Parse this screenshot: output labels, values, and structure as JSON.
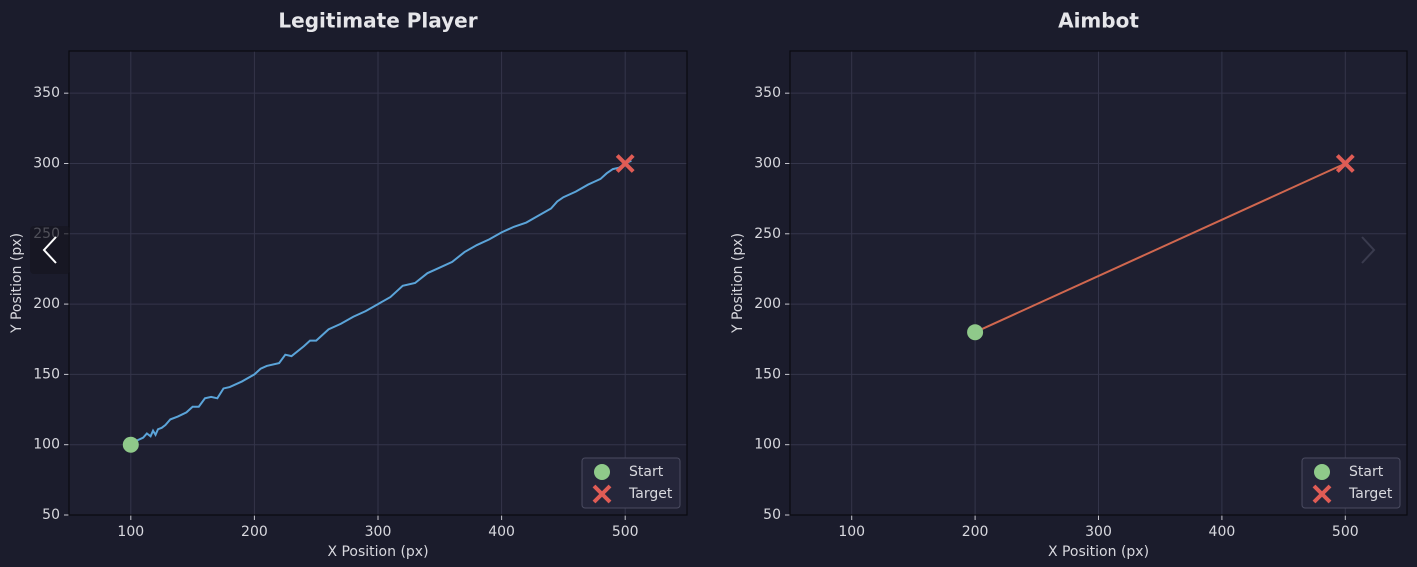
{
  "chart_data": [
    {
      "type": "line",
      "title": "Legitimate Player",
      "xlabel": "X Position (px)",
      "ylabel": "Y Position (px)",
      "xlim": [
        50,
        550
      ],
      "ylim": [
        50,
        380
      ],
      "xticks": [
        100,
        200,
        300,
        400,
        500
      ],
      "yticks": [
        50,
        100,
        150,
        200,
        250,
        300,
        350
      ],
      "grid": true,
      "legend": "lower right",
      "path": {
        "color": "#5ba4d9",
        "x": [
          100,
          105,
          110,
          113,
          116,
          118,
          120,
          122,
          125,
          128,
          132,
          138,
          145,
          150,
          155,
          160,
          165,
          170,
          175,
          180,
          190,
          200,
          205,
          210,
          220,
          225,
          230,
          240,
          245,
          250,
          260,
          270,
          280,
          290,
          300,
          310,
          315,
          320,
          330,
          340,
          350,
          360,
          370,
          380,
          390,
          400,
          410,
          420,
          430,
          440,
          445,
          450,
          460,
          470,
          475,
          480,
          485,
          490,
          495,
          500,
          505
        ],
        "y": [
          100,
          103,
          105,
          108,
          106,
          110,
          107,
          111,
          112,
          114,
          118,
          120,
          123,
          127,
          127,
          133,
          134,
          133,
          140,
          141,
          145,
          150,
          154,
          156,
          158,
          164,
          163,
          170,
          174,
          174,
          182,
          186,
          191,
          195,
          200,
          205,
          209,
          213,
          215,
          222,
          226,
          230,
          237,
          242,
          246,
          251,
          255,
          258,
          263,
          268,
          273,
          276,
          280,
          285,
          287,
          289,
          293,
          296,
          297,
          300,
          302
        ]
      },
      "start": {
        "name": "Start",
        "x": 100,
        "y": 100,
        "color": "#8fc98a"
      },
      "target": {
        "name": "Target",
        "x": 500,
        "y": 300,
        "color": "#e05c55"
      }
    },
    {
      "type": "line",
      "title": "Aimbot",
      "xlabel": "X Position (px)",
      "ylabel": "Y Position (px)",
      "xlim": [
        50,
        550
      ],
      "ylim": [
        50,
        380
      ],
      "xticks": [
        100,
        200,
        300,
        400,
        500
      ],
      "yticks": [
        50,
        100,
        150,
        200,
        250,
        300,
        350
      ],
      "grid": true,
      "legend": "lower right",
      "path": {
        "color": "#d0674f",
        "x": [
          200,
          500
        ],
        "y": [
          180,
          300
        ]
      },
      "start": {
        "name": "Start",
        "x": 200,
        "y": 180,
        "color": "#8fc98a"
      },
      "target": {
        "name": "Target",
        "x": 500,
        "y": 300,
        "color": "#e05c55"
      }
    }
  ]
}
